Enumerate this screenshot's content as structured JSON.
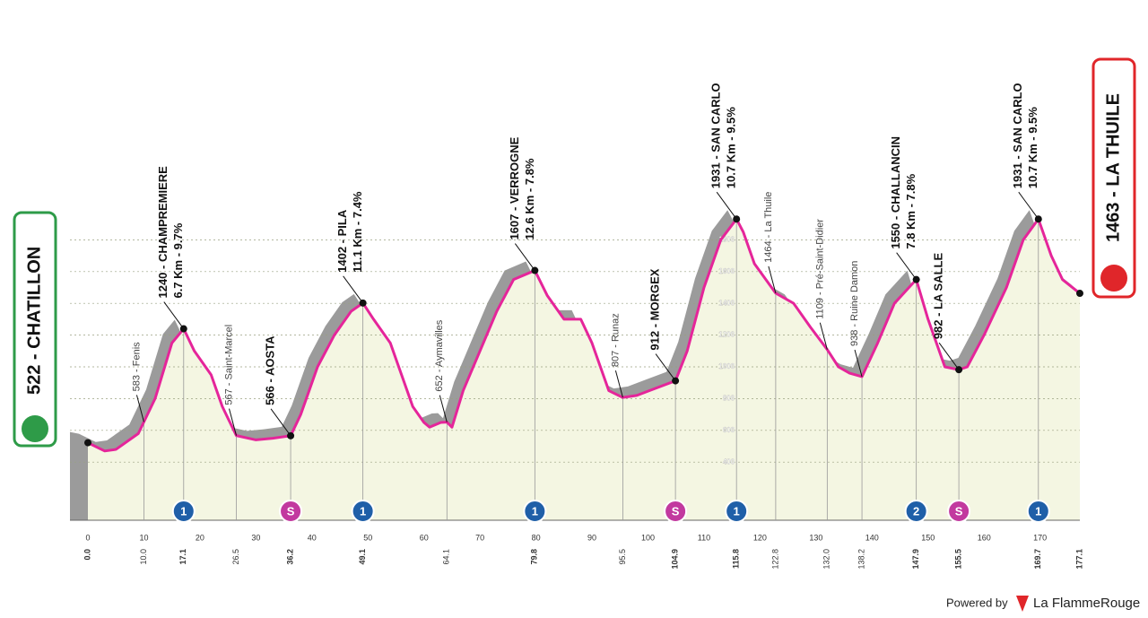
{
  "chart_data": {
    "type": "area",
    "start": {
      "label": "522 - CHATILLON",
      "km": {
        "value": 0,
        "label": "0.0"
      }
    },
    "finish": {
      "label": "1463 - LA THUILE",
      "km": 177.1
    },
    "x": [
      0,
      3,
      5,
      9,
      12,
      15,
      17.1,
      19,
      22,
      24,
      26.5,
      30,
      33,
      36.2,
      38,
      41,
      44,
      47,
      49.1,
      51,
      54,
      56,
      58,
      60,
      61,
      63,
      64.1,
      65,
      67,
      70,
      73,
      76,
      79.8,
      82,
      85,
      88,
      90,
      93,
      95.5,
      98,
      101,
      104.9,
      107,
      110,
      113,
      115.8,
      117,
      119,
      122.8,
      126,
      129,
      132,
      134,
      136,
      138.2,
      141,
      144,
      147.9,
      150,
      153,
      155.5,
      157,
      160,
      164,
      167,
      169.7,
      172,
      174,
      177.1
    ],
    "values": [
      522,
      470,
      480,
      580,
      800,
      1150,
      1240,
      1100,
      950,
      750,
      567,
      540,
      550,
      566,
      700,
      1000,
      1200,
      1350,
      1402,
      1300,
      1150,
      950,
      750,
      650,
      620,
      650,
      652,
      620,
      850,
      1100,
      1350,
      1550,
      1607,
      1450,
      1300,
      1300,
      1150,
      850,
      807,
      820,
      860,
      912,
      1100,
      1500,
      1800,
      1931,
      1850,
      1650,
      1464,
      1400,
      1250,
      1109,
      1000,
      960,
      938,
      1150,
      1400,
      1550,
      1300,
      1000,
      982,
      1000,
      1200,
      1500,
      1800,
      1931,
      1700,
      1550,
      1463
    ],
    "xlim": [
      0,
      177.1
    ],
    "ylim": [
      0,
      2000
    ],
    "xticks": [
      0,
      10,
      20,
      30,
      40,
      50,
      60,
      70,
      80,
      90,
      100,
      110,
      120,
      130,
      140,
      150,
      160,
      170
    ],
    "yticks": [
      400,
      600,
      800,
      1000,
      1200,
      1400,
      1600,
      1800
    ],
    "grid": true,
    "points": [
      {
        "km": {
          "value": 10,
          "label": "10.0"
        },
        "label": "583 - Fenis"
      },
      {
        "km": 17.1,
        "label": "1240 - CHAMPREMIERE",
        "detail": "6.7 Km - 9.7%",
        "icon": "1"
      },
      {
        "km": 26.5,
        "label": "567 - Saint-Marcel"
      },
      {
        "km": 36.2,
        "label": "566 - AOSTA",
        "icon": "S"
      },
      {
        "km": 49.1,
        "label": "1402 - PILA",
        "detail": "11.1 Km - 7.4%",
        "icon": "1"
      },
      {
        "km": 64.1,
        "label": "652 - Aymavilles"
      },
      {
        "km": 79.8,
        "label": "1607 - VERROGNE",
        "detail": "12.6 Km - 7.8%",
        "icon": "1"
      },
      {
        "km": 95.5,
        "label": "807 - Runaz"
      },
      {
        "km": 104.9,
        "label": "912 - MORGEX",
        "icon": "S"
      },
      {
        "km": 115.8,
        "label": "1931 - SAN CARLO",
        "detail": "10.7 Km - 9.5%",
        "icon": "1"
      },
      {
        "km": 122.8,
        "label": "1464 - La Thuile"
      },
      {
        "km": {
          "value": 132,
          "label": "132.0"
        },
        "label": "1109 - Pré-Saint-Didier"
      },
      {
        "km": 138.2,
        "label": "938 - Ruine Damon"
      },
      {
        "km": 147.9,
        "label": "1550 - CHALLANCIN",
        "detail": "7.8 Km - 7.8%",
        "icon": "2"
      },
      {
        "km": 155.5,
        "label": "982 - LA SALLE",
        "icon": "S"
      },
      {
        "km": 169.7,
        "label": "1931 - SAN CARLO",
        "detail": "10.7 Km - 9.5%",
        "icon": "1"
      }
    ],
    "footer": {
      "powered": "Powered by",
      "brand": "La FlammeRouge"
    }
  }
}
